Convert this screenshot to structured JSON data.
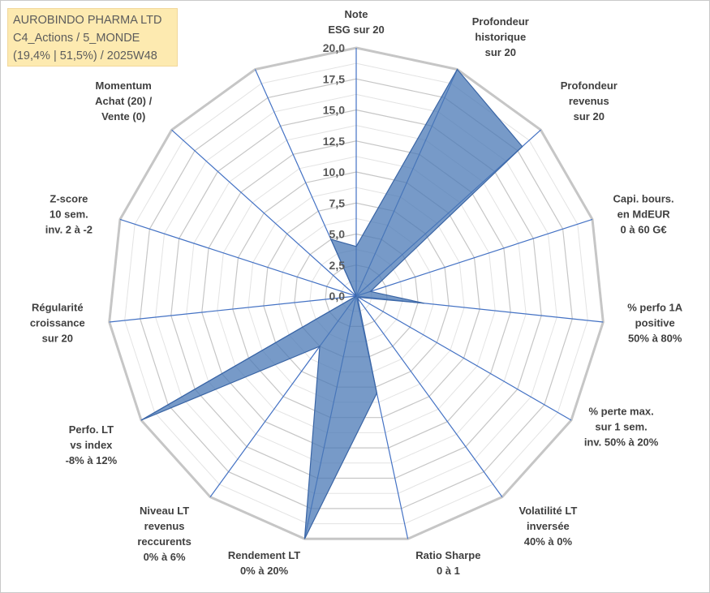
{
  "title_lines": [
    "AUROBINDO PHARMA LTD",
    "C4_Actions / 5_MONDE",
    "(19,4% | 51,5%) / 2025W48"
  ],
  "colors": {
    "grid": "#c6c6c6",
    "spoke": "#4472c4",
    "fill": "#4a78b5",
    "stroke": "#3a65a5",
    "title_bg": "#fdeab0"
  },
  "chart_data": {
    "type": "radar",
    "range": [
      0,
      20
    ],
    "grid": true,
    "tick_labels": [
      "0,0",
      "2,5",
      "5,0",
      "7,5",
      "10,0",
      "12,5",
      "15,0",
      "17,5",
      "20,0"
    ],
    "axes": [
      {
        "lines": [
          "Note",
          "ESG sur 20"
        ],
        "value": 4.0
      },
      {
        "lines": [
          "Profondeur",
          "historique",
          "sur 20"
        ],
        "value": 20.0
      },
      {
        "lines": [
          "Profondeur",
          "revenus",
          "sur 20"
        ],
        "value": 18.0
      },
      {
        "lines": [
          "Capi. bours.",
          "en MdEUR",
          "0 à 60 G€"
        ],
        "value": 1.2
      },
      {
        "lines": [
          "% perfo 1A",
          "positive",
          "50% à 80%"
        ],
        "value": 5.5
      },
      {
        "lines": [
          "% perte max.",
          "sur 1 sem.",
          "inv. 50% à 20%"
        ],
        "value": 0.2
      },
      {
        "lines": [
          "Volatilité LT",
          "inversée",
          "40% à 0%"
        ],
        "value": 0.2
      },
      {
        "lines": [
          "Ratio Sharpe",
          "0 à 1"
        ],
        "value": 8.0
      },
      {
        "lines": [
          "Rendement LT",
          "0% à 20%"
        ],
        "value": 20.0
      },
      {
        "lines": [
          "Niveau LT",
          "revenus",
          "reccurents",
          "0% à 6%"
        ],
        "value": 5.0
      },
      {
        "lines": [
          "Perfo. LT",
          "vs index",
          "-8% à 12%"
        ],
        "value": 20.0
      },
      {
        "lines": [
          "Régularité",
          "croissance",
          "sur 20"
        ],
        "value": 0.0
      },
      {
        "lines": [
          "Z-score",
          "10 sem.",
          "inv. 2 à -2"
        ],
        "value": 0.0
      },
      {
        "lines": [
          "Momentum",
          "Achat (20) /",
          "Vente (0)"
        ],
        "value": 0.0
      },
      {
        "lines": [
          ""
        ],
        "value": 5.0
      }
    ]
  }
}
